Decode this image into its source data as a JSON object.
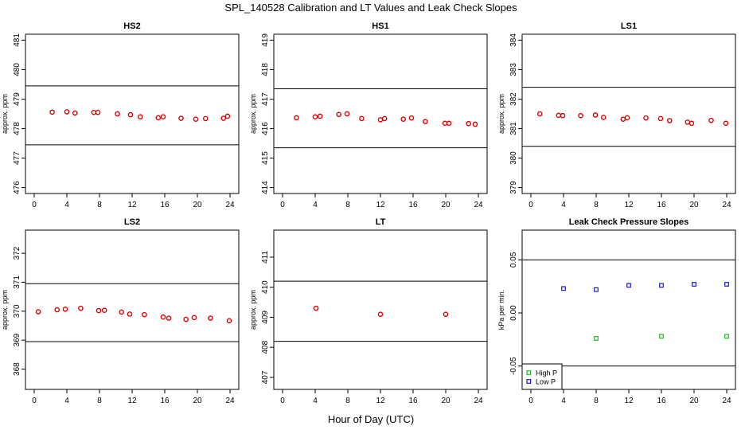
{
  "page": {
    "title": "SPL_140528  Calibration and LT Values and Leak Check Slopes",
    "xlabel": "Hour of Day (UTC)"
  },
  "colors": {
    "red": "#dd0000",
    "green": "#22bb22",
    "blue": "#1a1acc",
    "axis": "#000000"
  },
  "chart_data": [
    {
      "type": "scatter",
      "title": "HS2",
      "ylabel": "approx. ppm",
      "xlim": [
        0,
        24
      ],
      "xticks": [
        0,
        4,
        8,
        12,
        16,
        20,
        24
      ],
      "ylim": [
        475.8,
        481.2
      ],
      "yticks": [
        476,
        477,
        478,
        479,
        480,
        481
      ],
      "hlines": [
        477.45,
        479.45
      ],
      "series": [
        {
          "color": "red",
          "marker": "circle",
          "x": [
            2.2,
            4.0,
            5.0,
            7.3,
            7.8,
            10.2,
            11.8,
            13.0,
            15.2,
            15.8,
            18.0,
            19.8,
            21.0,
            23.2,
            23.7
          ],
          "y": [
            478.56,
            478.57,
            478.53,
            478.55,
            478.55,
            478.5,
            478.47,
            478.4,
            478.37,
            478.4,
            478.35,
            478.32,
            478.34,
            478.35,
            478.42
          ]
        }
      ]
    },
    {
      "type": "scatter",
      "title": "HS1",
      "ylabel": "approx. ppm",
      "xlim": [
        0,
        24
      ],
      "xticks": [
        0,
        4,
        8,
        12,
        16,
        20,
        24
      ],
      "ylim": [
        413.8,
        419.2
      ],
      "yticks": [
        414,
        415,
        416,
        417,
        418,
        419
      ],
      "hlines": [
        415.35,
        417.35
      ],
      "series": [
        {
          "color": "red",
          "marker": "circle",
          "x": [
            1.7,
            4.0,
            4.6,
            6.9,
            7.9,
            9.7,
            12.0,
            12.5,
            14.8,
            15.8,
            17.5,
            19.9,
            20.4,
            22.8,
            23.6
          ],
          "y": [
            416.37,
            416.4,
            416.42,
            416.48,
            416.5,
            416.34,
            416.3,
            416.34,
            416.32,
            416.36,
            416.24,
            416.18,
            416.18,
            416.17,
            416.15
          ]
        }
      ]
    },
    {
      "type": "scatter",
      "title": "LS1",
      "ylabel": "approx. ppm",
      "xlim": [
        0,
        24
      ],
      "xticks": [
        0,
        4,
        8,
        12,
        16,
        20,
        24
      ],
      "ylim": [
        378.8,
        384.2
      ],
      "yticks": [
        379,
        380,
        381,
        382,
        383,
        384
      ],
      "hlines": [
        380.4,
        382.4
      ],
      "series": [
        {
          "color": "red",
          "marker": "circle",
          "x": [
            1.1,
            3.4,
            3.9,
            6.1,
            7.9,
            8.9,
            11.3,
            11.8,
            14.1,
            15.9,
            17.0,
            19.2,
            19.7,
            22.1,
            23.9
          ],
          "y": [
            381.5,
            381.45,
            381.44,
            381.44,
            381.46,
            381.38,
            381.32,
            381.37,
            381.36,
            381.34,
            381.27,
            381.22,
            381.18,
            381.28,
            381.18
          ]
        }
      ]
    },
    {
      "type": "scatter",
      "title": "LS2",
      "ylabel": "approx. ppm",
      "xlim": [
        0,
        24
      ],
      "xticks": [
        0,
        4,
        8,
        12,
        16,
        20,
        24
      ],
      "ylim": [
        367.3,
        372.8
      ],
      "yticks": [
        368,
        369,
        370,
        371,
        372
      ],
      "hlines": [
        368.95,
        370.95
      ],
      "series": [
        {
          "color": "red",
          "marker": "circle",
          "x": [
            0.5,
            2.8,
            3.8,
            5.7,
            7.9,
            8.6,
            10.7,
            11.7,
            13.5,
            15.8,
            16.5,
            18.6,
            19.6,
            21.6,
            23.9
          ],
          "y": [
            369.98,
            370.05,
            370.07,
            370.1,
            370.02,
            370.03,
            369.97,
            369.9,
            369.88,
            369.8,
            369.76,
            369.72,
            369.78,
            369.76,
            369.67
          ]
        }
      ]
    },
    {
      "type": "scatter",
      "title": "LT",
      "ylabel": "approx. ppm",
      "xlim": [
        0,
        24
      ],
      "xticks": [
        0,
        4,
        8,
        12,
        16,
        20,
        24
      ],
      "ylim": [
        406.6,
        411.9
      ],
      "yticks": [
        407,
        408,
        409,
        410,
        411
      ],
      "hlines": [
        408.2,
        410.2
      ],
      "series": [
        {
          "color": "red",
          "marker": "circle",
          "x": [
            4.1,
            12.0,
            20.0
          ],
          "y": [
            409.3,
            409.1,
            409.1
          ]
        }
      ]
    },
    {
      "type": "scatter",
      "title": "Leak Check Pressure Slopes",
      "ylabel": "kPa per min.",
      "xlim": [
        0,
        24
      ],
      "xticks": [
        0,
        4,
        8,
        12,
        16,
        20,
        24
      ],
      "ylim": [
        -0.072,
        0.078
      ],
      "yticks": [
        -0.05,
        0.0,
        0.05
      ],
      "yticklabels": [
        "-0.05",
        "0.00",
        "0.05"
      ],
      "hlines": [
        -0.05,
        0.05
      ],
      "legend": {
        "position": "bottom-left",
        "entries": [
          "High P",
          "Low P"
        ]
      },
      "series": [
        {
          "name": "High P",
          "color": "green",
          "marker": "square",
          "x": [
            8.0,
            16.0,
            24.0
          ],
          "y": [
            -0.024,
            -0.022,
            -0.022
          ]
        },
        {
          "name": "Low P",
          "color": "blue",
          "marker": "square",
          "x": [
            4.0,
            8.0,
            12.0,
            16.0,
            20.0,
            24.0
          ],
          "y": [
            0.023,
            0.022,
            0.026,
            0.026,
            0.027,
            0.027
          ]
        }
      ]
    }
  ]
}
